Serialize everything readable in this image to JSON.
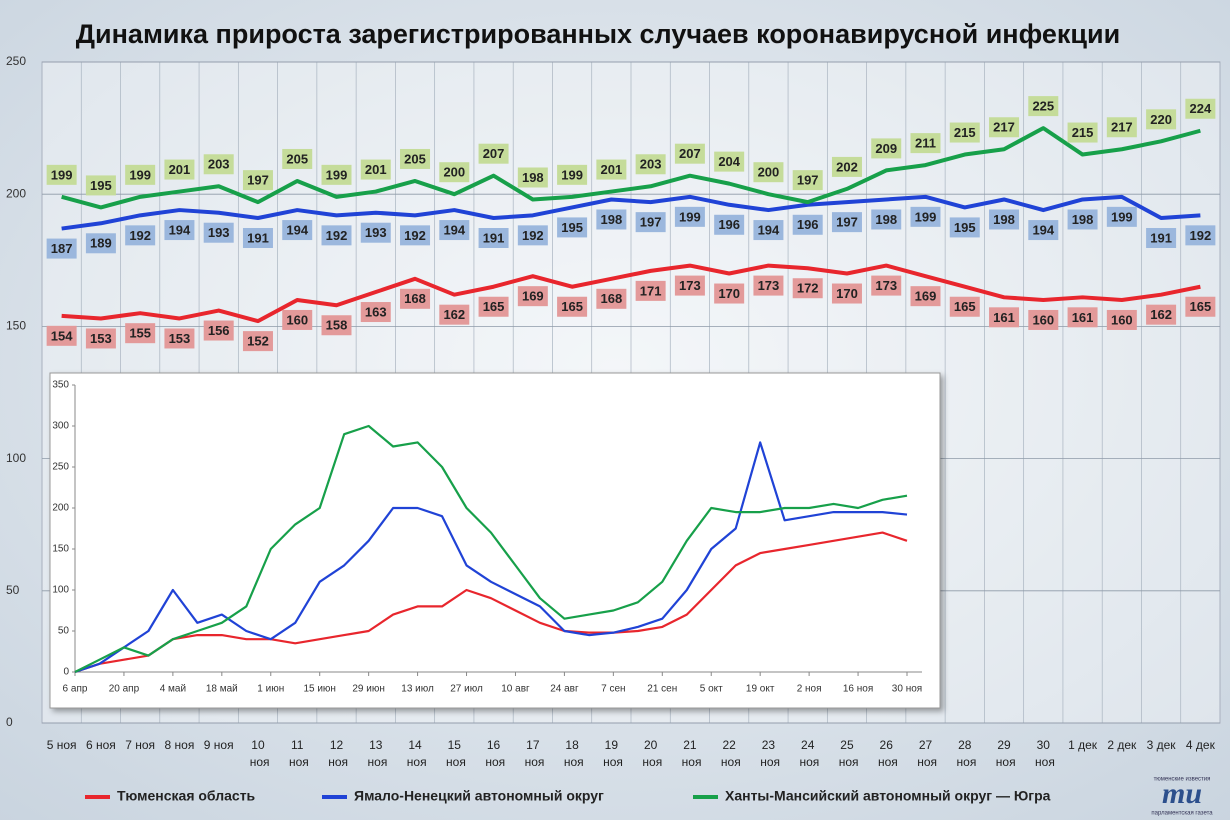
{
  "chart_data": [
    {
      "type": "line",
      "title": "Динамика прироста зарегистрированных случаев коронавирусной инфекции",
      "categories": [
        "5 ноя",
        "6 ноя",
        "7 ноя",
        "8 ноя",
        "9 ноя",
        "10 ноя",
        "11 ноя",
        "12 ноя",
        "13 ноя",
        "14 ноя",
        "15 ноя",
        "16 ноя",
        "17 ноя",
        "18 ноя",
        "19 ноя",
        "20 ноя",
        "21 ноя",
        "22 ноя",
        "23 ноя",
        "24 ноя",
        "25 ноя",
        "26 ноя",
        "27 ноя",
        "28 ноя",
        "29 ноя",
        "30 ноя",
        "1 дек",
        "2 дек",
        "3 дек",
        "4 дек"
      ],
      "series": [
        {
          "name": "Тюменская область",
          "color": "#e8262d",
          "label_color": "#e39a9a",
          "label_position": "below",
          "values": [
            154,
            153,
            155,
            153,
            156,
            152,
            160,
            158,
            163,
            168,
            162,
            165,
            169,
            165,
            168,
            171,
            173,
            170,
            173,
            172,
            170,
            173,
            169,
            165,
            161,
            160,
            161,
            160,
            162,
            165
          ]
        },
        {
          "name": "Ямало-Ненецкий автономный округ",
          "color": "#2043d6",
          "label_color": "#9bb7dd",
          "label_position": "below",
          "values": [
            187,
            189,
            192,
            194,
            193,
            191,
            194,
            192,
            193,
            192,
            194,
            191,
            192,
            195,
            198,
            197,
            199,
            196,
            194,
            196,
            197,
            198,
            199,
            195,
            198,
            194,
            198,
            199,
            191,
            192
          ]
        },
        {
          "name": "Ханты-Мансийский автономный округ — Югра",
          "color": "#17a04a",
          "label_color": "#c5dc9a",
          "label_position": "above",
          "values": [
            199,
            195,
            199,
            201,
            203,
            197,
            205,
            199,
            201,
            205,
            200,
            207,
            198,
            199,
            201,
            203,
            207,
            204,
            200,
            197,
            202,
            209,
            211,
            215,
            217,
            225,
            215,
            217,
            220,
            224
          ]
        }
      ],
      "data_labels": true,
      "ylim": [
        0,
        250
      ],
      "yticks": [
        0,
        50,
        100,
        150,
        200,
        250
      ],
      "grid": true,
      "legend": "bottom",
      "logo": [
        "тюменские известия",
        "ти",
        "парламентская газета"
      ]
    },
    {
      "type": "line",
      "categories": [
        "6 апр",
        null,
        "20 апр",
        null,
        "4 май",
        null,
        "18 май",
        null,
        "1 июн",
        null,
        "15 июн",
        null,
        "29 июн",
        null,
        "13 июл",
        null,
        "27 июл",
        null,
        "10 авг",
        null,
        "24 авг",
        null,
        "7 сен",
        null,
        "21 сен",
        null,
        "5 окт",
        null,
        "19 окт",
        null,
        "2 ноя",
        null,
        "16 ноя",
        null,
        "30 ноя"
      ],
      "series": [
        {
          "color": "#e8262d",
          "values": [
            0,
            10,
            15,
            20,
            40,
            45,
            45,
            40,
            40,
            35,
            40,
            45,
            50,
            70,
            80,
            80,
            100,
            90,
            75,
            60,
            50,
            48,
            48,
            50,
            55,
            70,
            100,
            130,
            145,
            150,
            155,
            160,
            165,
            170,
            160
          ]
        },
        {
          "color": "#2043d6",
          "values": [
            0,
            10,
            30,
            50,
            100,
            60,
            70,
            50,
            40,
            60,
            110,
            130,
            160,
            200,
            200,
            190,
            130,
            110,
            95,
            80,
            50,
            45,
            48,
            55,
            65,
            100,
            150,
            175,
            280,
            185,
            190,
            195,
            195,
            195,
            192
          ]
        },
        {
          "color": "#17a04a",
          "values": [
            0,
            15,
            30,
            20,
            40,
            50,
            60,
            80,
            150,
            180,
            200,
            290,
            300,
            275,
            280,
            250,
            200,
            170,
            130,
            90,
            65,
            70,
            75,
            85,
            110,
            160,
            200,
            195,
            195,
            200,
            200,
            205,
            200,
            210,
            215
          ]
        }
      ],
      "ylim": [
        0,
        350
      ],
      "yticks": [
        0,
        50,
        100,
        150,
        200,
        250,
        300,
        350
      ],
      "grid": false
    }
  ]
}
